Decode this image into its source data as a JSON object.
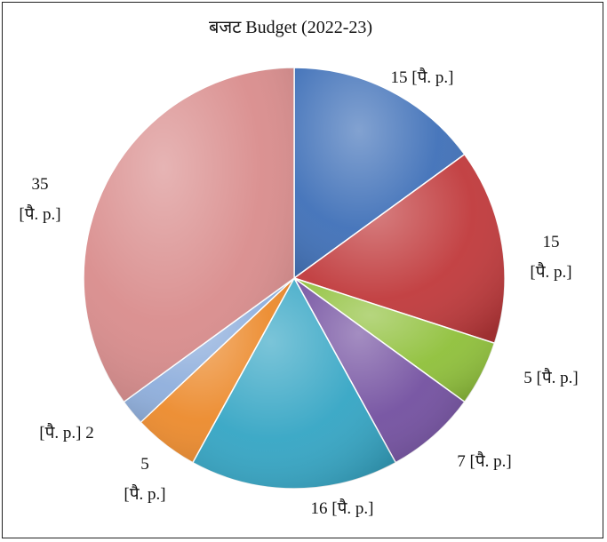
{
  "chart_data": {
    "type": "pie",
    "title": "बजट Budget  (2022-23)",
    "unit_label": "[पै. p.]",
    "slices": [
      {
        "value": 15,
        "color": "#3f70b8"
      },
      {
        "value": 15,
        "color": "#c0393b"
      },
      {
        "value": 5,
        "color": "#8fc03a"
      },
      {
        "value": 7,
        "color": "#7350a0"
      },
      {
        "value": 16,
        "color": "#34a5c4"
      },
      {
        "value": 5,
        "color": "#ec8a2c"
      },
      {
        "value": 2,
        "color": "#8eaedc"
      },
      {
        "value": 35,
        "color": "#d98c8c"
      }
    ]
  }
}
